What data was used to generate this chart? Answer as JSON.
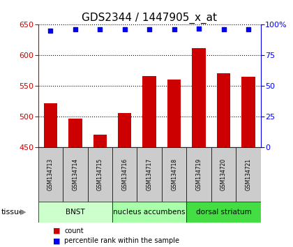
{
  "title": "GDS2344 / 1447905_x_at",
  "samples": [
    "GSM134713",
    "GSM134714",
    "GSM134715",
    "GSM134716",
    "GSM134717",
    "GSM134718",
    "GSM134719",
    "GSM134720",
    "GSM134721"
  ],
  "counts": [
    521,
    496,
    470,
    505,
    566,
    560,
    612,
    570,
    565
  ],
  "percentiles": [
    95,
    96,
    96,
    96,
    96,
    96,
    97,
    96,
    96
  ],
  "ylim_left": [
    450,
    650
  ],
  "ylim_right": [
    0,
    100
  ],
  "yticks_left": [
    450,
    500,
    550,
    600,
    650
  ],
  "yticks_right": [
    0,
    25,
    50,
    75,
    100
  ],
  "bar_color": "#cc0000",
  "dot_color": "#0000ee",
  "bar_width": 0.55,
  "tissue_groups": [
    {
      "label": "BNST",
      "start": 0,
      "end": 3,
      "color": "#ccffcc"
    },
    {
      "label": "nucleus accumbens",
      "start": 3,
      "end": 6,
      "color": "#aaffaa"
    },
    {
      "label": "dorsal striatum",
      "start": 6,
      "end": 9,
      "color": "#44dd44"
    }
  ],
  "tissue_label": "tissue",
  "legend_items": [
    {
      "label": "count",
      "color": "#cc0000"
    },
    {
      "label": "percentile rank within the sample",
      "color": "#0000ee"
    }
  ],
  "grid_color": "#000000",
  "bg_color": "#ffffff",
  "sample_box_color": "#cccccc",
  "title_fontsize": 11,
  "tick_fontsize": 8,
  "sample_fontsize": 5.5,
  "tissue_fontsize": 7.5,
  "legend_fontsize": 7
}
